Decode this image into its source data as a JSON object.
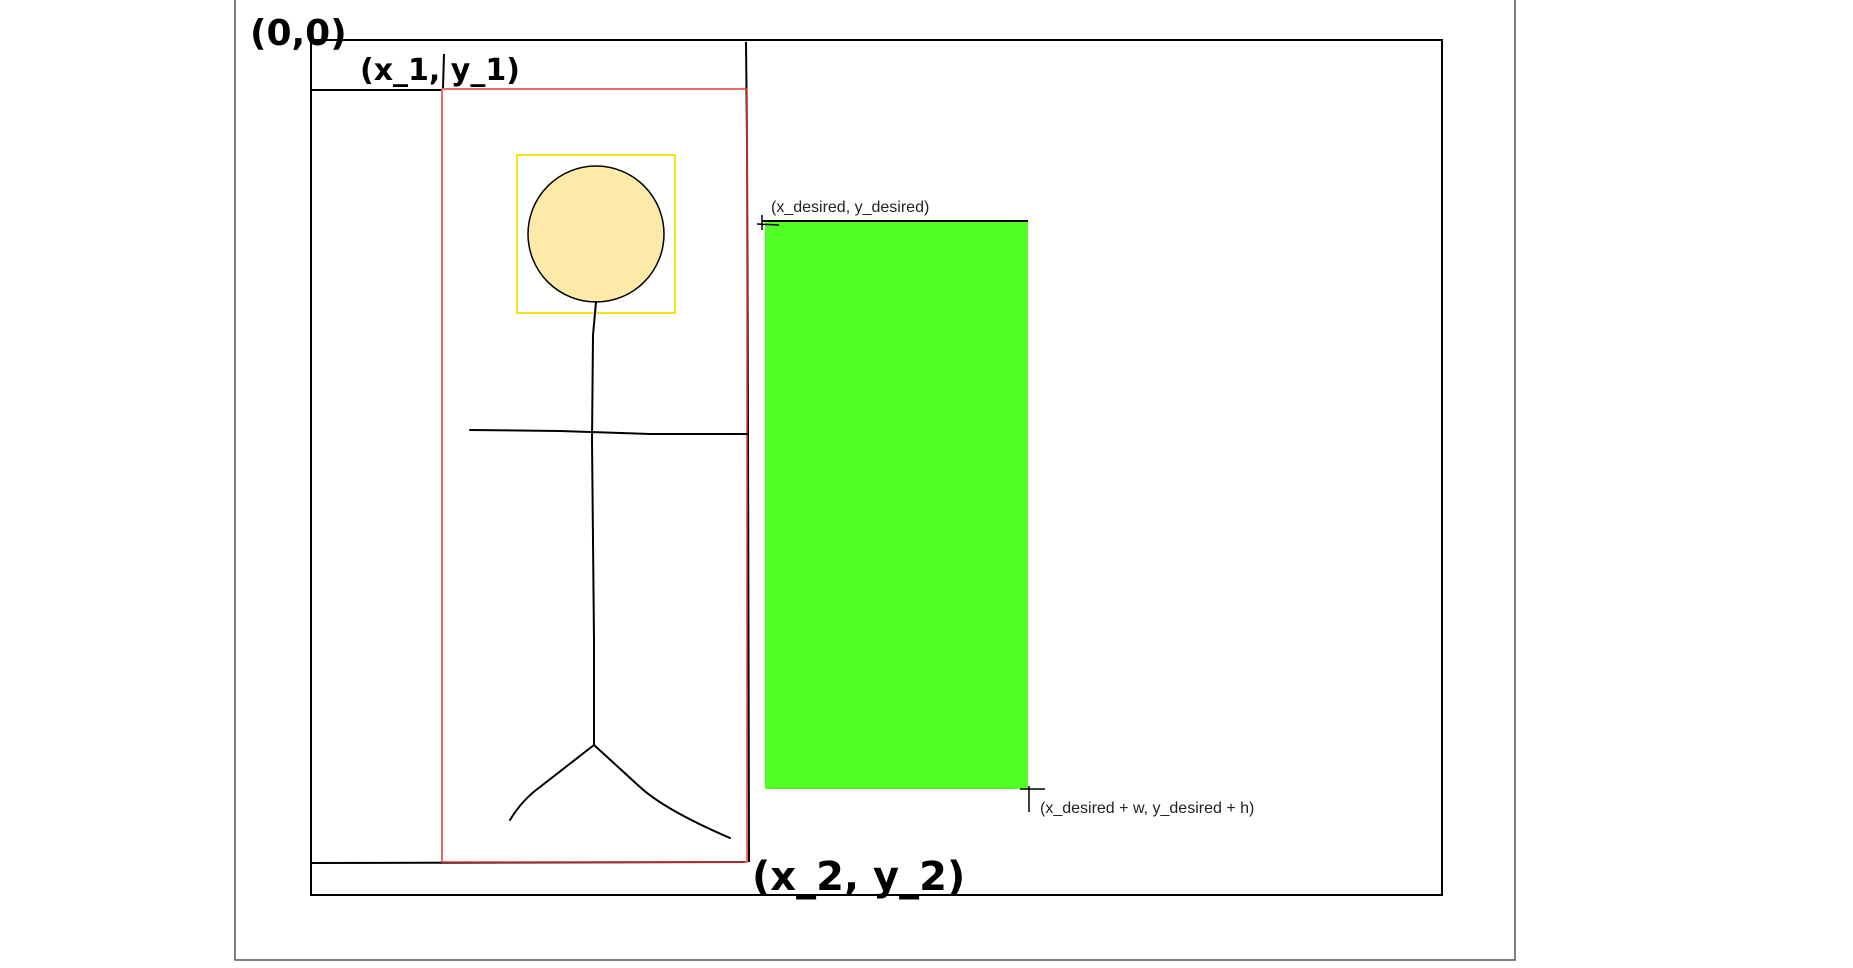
{
  "labels": {
    "origin": "(0,0)",
    "point1": "(x_1, y_1)",
    "point2": "(x_2, y_2)",
    "desired_top_left": "(x_desired, y_desired)",
    "desired_bottom_right": "(x_desired + w, y_desired + h)"
  },
  "colors": {
    "frame": "#555555",
    "stroke": "#000000",
    "crop_box": "#e53935",
    "head_box": "#f2e21a",
    "head_fill": "#fdeaa8",
    "target_fill": "#52ff24",
    "text": "#222222"
  },
  "icons": {
    "figure": "stick-figure-icon"
  }
}
